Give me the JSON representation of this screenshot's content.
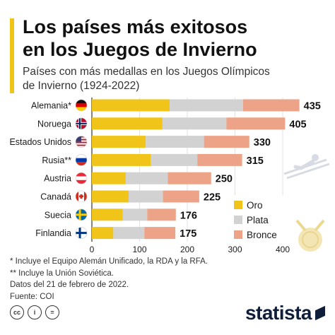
{
  "title_lines": [
    "Los países más exitosos",
    "en los Juegos de Invierno"
  ],
  "subtitle_lines": [
    "Países con más medallas en los Juegos Olímpicos",
    "de Invierno (1924-2022)"
  ],
  "colors": {
    "accent": "#f0c419",
    "gold": "#f0c419",
    "silver": "#d2d2d2",
    "bronze": "#eda387",
    "text": "#1a1a1a",
    "axis": "#333333",
    "grid": "#e2e2e2",
    "brand": "#0f1e3a"
  },
  "chart_data": {
    "type": "bar",
    "orientation": "horizontal",
    "stacked": true,
    "categories": [
      "Alemania*",
      "Noruega",
      "Estados Unidos",
      "Rusia**",
      "Austria",
      "Canadá",
      "Suecia",
      "Finlandia"
    ],
    "flags": [
      "flag-germany",
      "flag-norway",
      "flag-usa",
      "flag-russia",
      "flag-austria",
      "flag-canada",
      "flag-sweden",
      "flag-finland"
    ],
    "series": [
      {
        "name": "Oro",
        "values": [
          163,
          148,
          113,
          124,
          71,
          77,
          65,
          45
        ]
      },
      {
        "name": "Plata",
        "values": [
          154,
          134,
          122,
          97,
          88,
          72,
          51,
          65
        ]
      },
      {
        "name": "Bronce",
        "values": [
          118,
          123,
          95,
          94,
          91,
          76,
          60,
          65
        ]
      }
    ],
    "totals": [
      435,
      405,
      330,
      315,
      250,
      225,
      176,
      175
    ],
    "xlim": [
      0,
      430
    ],
    "xticks": [
      0,
      100,
      200,
      300,
      400
    ],
    "grid": true,
    "legend_position": "bottom-right"
  },
  "notes": [
    "*   Incluye el Equipo Alemán Unificado, la RDA y la RFA.",
    "** Incluye la Unión Soviética.",
    "Datos del 21 de febrero de 2022.",
    "Fuente: COI"
  ],
  "license_icons": [
    "cc",
    "i",
    "="
  ],
  "brand": "statista"
}
